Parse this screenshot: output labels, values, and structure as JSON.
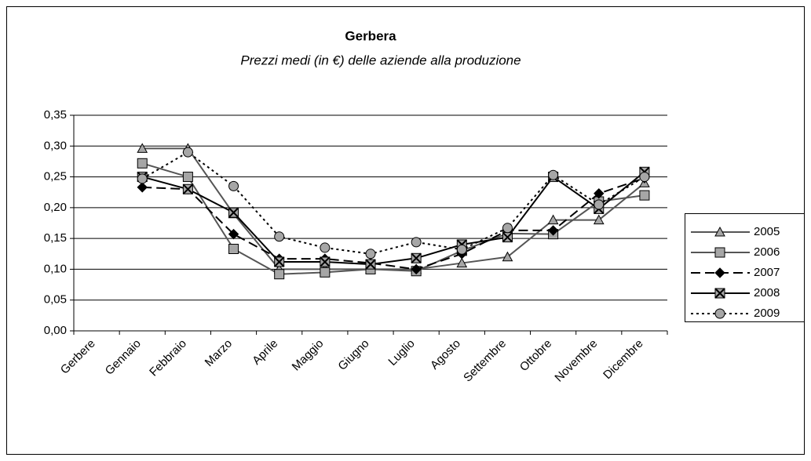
{
  "chart_data": {
    "type": "line",
    "title": "Gerbera",
    "subtitle": "Prezzi medi (in €) delle aziende alla produzione",
    "categories": [
      "Gerbere",
      "Gennaio",
      "Febbraio",
      "Marzo",
      "Aprile",
      "Maggio",
      "Giugno",
      "Luglio",
      "Agosto",
      "Settembre",
      "Ottobre",
      "Novembre",
      "Dicembre"
    ],
    "series": [
      {
        "name": "2005",
        "color": "#555555",
        "marker_color": "#a6a6a6",
        "marker": "triangle",
        "line_style": "solid",
        "values": [
          null,
          0.296,
          0.296,
          0.19,
          0.1,
          0.1,
          0.1,
          0.1,
          0.11,
          0.12,
          0.18,
          0.18,
          0.24
        ]
      },
      {
        "name": "2006",
        "color": "#555555",
        "marker_color": "#a6a6a6",
        "marker": "square",
        "line_style": "solid",
        "values": [
          null,
          0.272,
          0.25,
          0.133,
          0.092,
          0.095,
          0.1,
          0.097,
          0.13,
          0.158,
          0.157,
          0.21,
          0.22
        ]
      },
      {
        "name": "2007",
        "color": "#000000",
        "marker_color": "#000000",
        "marker": "diamond",
        "line_style": "dashed",
        "values": [
          null,
          0.233,
          0.23,
          0.157,
          0.117,
          0.117,
          0.11,
          0.1,
          0.125,
          0.163,
          0.163,
          0.223,
          0.248
        ]
      },
      {
        "name": "2008",
        "color": "#000000",
        "marker_color": "#a6a6a6",
        "marker": "x",
        "line_style": "solid",
        "values": [
          null,
          0.25,
          0.23,
          0.192,
          0.112,
          0.112,
          0.108,
          0.118,
          0.14,
          0.152,
          0.25,
          0.198,
          0.258
        ]
      },
      {
        "name": "2009",
        "color": "#000000",
        "marker_color": "#a6a6a6",
        "marker": "circle",
        "line_style": "dotted",
        "values": [
          null,
          0.247,
          0.29,
          0.235,
          0.153,
          0.135,
          0.125,
          0.144,
          0.132,
          0.167,
          0.253,
          0.205,
          0.25
        ]
      }
    ],
    "ylim": [
      0,
      0.35
    ],
    "yticks": [
      {
        "value": 0,
        "label": "0,00"
      },
      {
        "value": 0.05,
        "label": "0,05"
      },
      {
        "value": 0.1,
        "label": "0,10"
      },
      {
        "value": 0.15,
        "label": "0,15"
      },
      {
        "value": 0.2,
        "label": "0,20"
      },
      {
        "value": 0.25,
        "label": "0,25"
      },
      {
        "value": 0.3,
        "label": "0,30"
      },
      {
        "value": 0.35,
        "label": "0,35"
      }
    ],
    "grid": true,
    "legend": "right"
  }
}
